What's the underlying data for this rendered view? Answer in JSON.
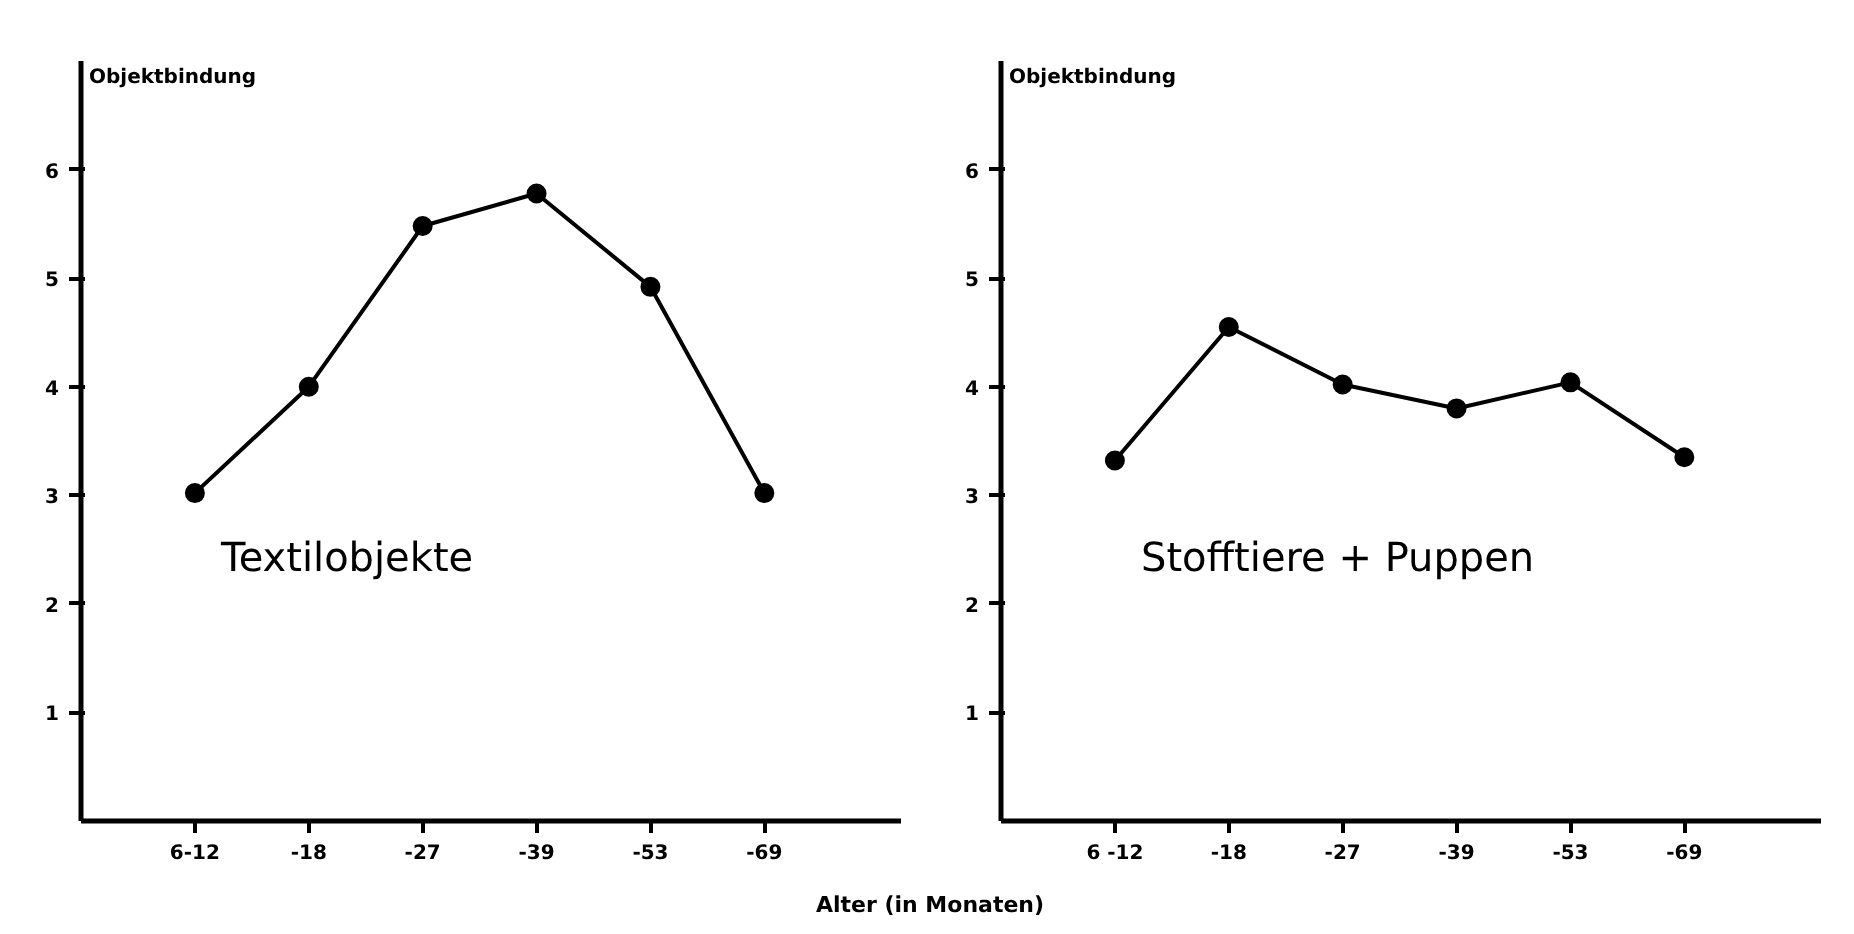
{
  "chart_data": [
    {
      "type": "line",
      "ylabel": "Objektbindung",
      "xlabel": "Alter (in Monaten)",
      "annotations": [
        "Textilobjekte"
      ],
      "categories": [
        "6-12",
        "-18",
        "-27",
        "-39",
        "-53",
        "-69"
      ],
      "values": [
        3.02,
        4.0,
        5.48,
        5.78,
        4.92,
        3.02
      ],
      "color": "#000000",
      "ylim": [
        0,
        7
      ],
      "yticks": [
        1,
        2,
        3,
        4,
        5,
        6
      ],
      "marker": "circle",
      "grid": false
    },
    {
      "type": "line",
      "ylabel": "Objektbindung",
      "annotations": [
        "Stofftiere + Puppen"
      ],
      "categories": [
        "6 -12",
        "-18",
        "-27",
        "-39",
        "-53",
        "-69"
      ],
      "values": [
        3.32,
        4.55,
        4.02,
        3.8,
        4.04,
        3.35
      ],
      "color": "#000000",
      "ylim": [
        0,
        7
      ],
      "yticks": [
        1,
        2,
        3,
        4,
        5,
        6
      ],
      "marker": "circle",
      "grid": false
    }
  ]
}
